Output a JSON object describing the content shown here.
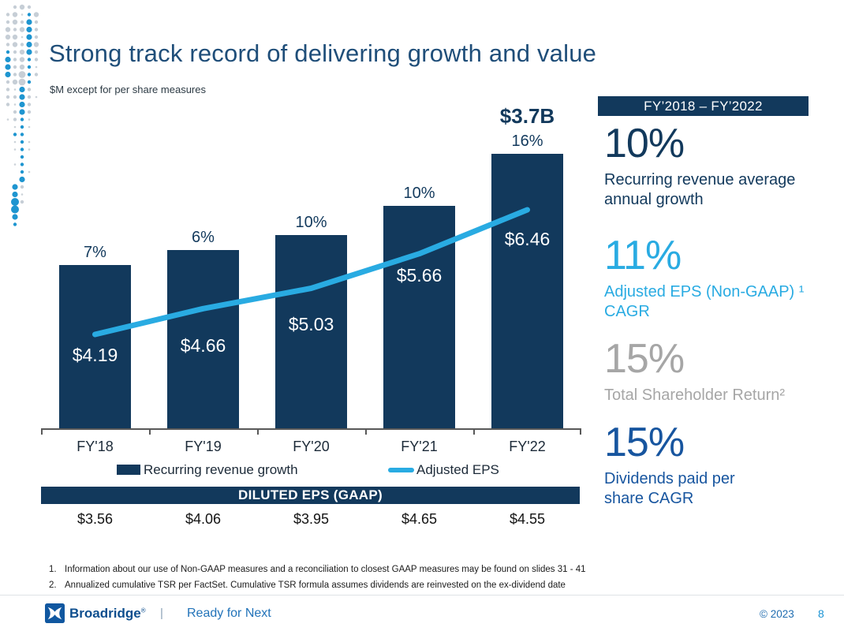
{
  "slide": {
    "title": "Strong track record of delivering growth and value",
    "subtitle": "$M except for per share measures"
  },
  "chart_data": {
    "type": "combo",
    "categories": [
      "FY'18",
      "FY'19",
      "FY'20",
      "FY'21",
      "FY'22"
    ],
    "series": [
      {
        "name": "Recurring revenue growth",
        "type": "bar",
        "unit": "$B (estimated from bar heights; FY'22 labeled)",
        "values": [
          2.2,
          2.4,
          2.6,
          3.0,
          3.7
        ],
        "growth_labels": [
          "7%",
          "6%",
          "10%",
          "10%",
          "16%"
        ],
        "top_annotation": "$3.7B",
        "color": "#12395C"
      },
      {
        "name": "Adjusted EPS",
        "type": "line",
        "unit": "$",
        "values": [
          4.19,
          4.66,
          5.03,
          5.66,
          6.46
        ],
        "point_labels": [
          "$4.19",
          "$4.66",
          "$5.03",
          "$5.66",
          "$6.46"
        ],
        "color": "#29ABE2"
      }
    ],
    "legend_position": "bottom",
    "grid": false,
    "xlabel": "",
    "ylabel": ""
  },
  "gaap": {
    "banner": "DILUTED EPS (GAAP)",
    "values": [
      "$3.56",
      "$4.06",
      "$3.95",
      "$4.65",
      "$4.55"
    ]
  },
  "panel": {
    "banner": "FY’2018 – FY’2022",
    "stats": [
      {
        "value": "10%",
        "label": "Recurring revenue average annual growth",
        "color": "#12395C"
      },
      {
        "value": "11%",
        "label": "Adjusted EPS (Non-GAAP) ¹ CAGR",
        "color": "#29ABE2"
      },
      {
        "value": "15%",
        "label": "Total Shareholder Return²",
        "color": "#A6A6A6"
      },
      {
        "value": "15%",
        "label": "Dividends paid per share CAGR",
        "color": "#17559F"
      }
    ]
  },
  "footnotes": [
    {
      "num": "1.",
      "text": "Information about our use of Non-GAAP measures and a reconciliation to closest GAAP measures may be found on slides 31 - 41"
    },
    {
      "num": "2.",
      "text": "Annualized cumulative TSR per FactSet. Cumulative TSR formula assumes dividends are reinvested on the ex-dividend date"
    }
  ],
  "footer": {
    "brand": "Broadridge",
    "reg": "®",
    "separator": "|",
    "tagline": "Ready for Next",
    "copyright": "© 2023",
    "page": "8"
  },
  "colors": {
    "navy": "#12395C",
    "light_blue": "#29ABE2",
    "medium_blue": "#17559F",
    "gray": "#A6A6A6",
    "title_blue": "#1F4E79"
  }
}
